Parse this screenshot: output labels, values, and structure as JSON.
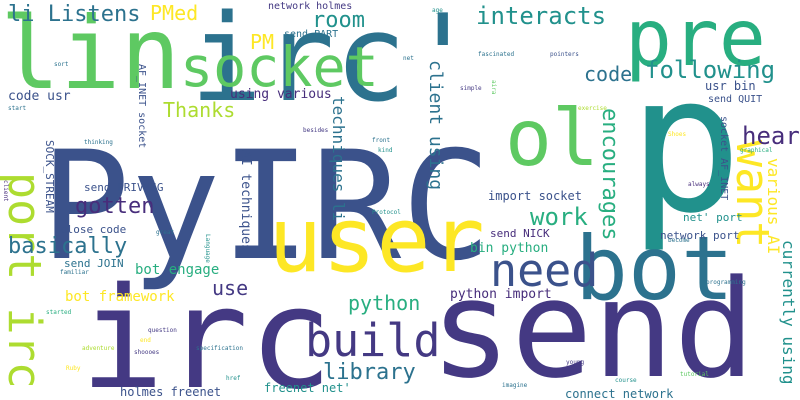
{
  "cloud": {
    "background": "#ffffff",
    "palette": [
      "#3b528b",
      "#443983",
      "#2c728e",
      "#21918c",
      "#28ae80",
      "#5ec962",
      "#addc30",
      "#fde725",
      "#472d7b",
      "#46085c"
    ],
    "words": [
      {
        "text": "PyIRC",
        "color": "#3b528b"
      },
      {
        "text": "p",
        "color": "#21918c"
      },
      {
        "text": "irc",
        "color": "#443983"
      },
      {
        "text": "send",
        "color": "#443983"
      },
      {
        "text": "irc'",
        "color": "#2c728e"
      },
      {
        "text": "user",
        "color": "#fde725"
      },
      {
        "text": "bot",
        "color": "#2c728e"
      },
      {
        "text": "lin",
        "color": "#5ec962"
      },
      {
        "text": "pre",
        "color": "#28ae80"
      },
      {
        "text": "ol",
        "color": "#5ec962"
      },
      {
        "text": "socket",
        "color": "#5ec962"
      },
      {
        "text": "build",
        "color": "#443983"
      },
      {
        "text": "need",
        "color": "#3b528b"
      },
      {
        "text": "port irc",
        "color": "#addc30"
      },
      {
        "text": "want",
        "color": "#fde725"
      },
      {
        "text": "interacts",
        "color": "#21918c"
      },
      {
        "text": "following",
        "color": "#21918c"
      },
      {
        "text": "code",
        "color": "#2c728e"
      },
      {
        "text": "room",
        "color": "#21918c"
      },
      {
        "text": "PMed",
        "color": "#fde725"
      },
      {
        "text": "li Listens",
        "color": "#2c728e"
      },
      {
        "text": "Thanks",
        "color": "#addc30"
      },
      {
        "text": "PM",
        "color": "#fde725"
      },
      {
        "text": "hear",
        "color": "#472d7b"
      },
      {
        "text": "work",
        "color": "#28ae80"
      },
      {
        "text": "encourages",
        "color": "#28ae80"
      },
      {
        "text": "gotten",
        "color": "#472d7b"
      },
      {
        "text": "basically",
        "color": "#2c728e"
      },
      {
        "text": "use",
        "color": "#443983"
      },
      {
        "text": "python",
        "color": "#28ae80"
      },
      {
        "text": "library",
        "color": "#2c728e"
      },
      {
        "text": "client using",
        "color": "#2c728e"
      },
      {
        "text": "techniques li",
        "color": "#2c728e"
      },
      {
        "text": "currently using",
        "color": "#21918c"
      },
      {
        "text": "various AI",
        "color": "#fde725"
      },
      {
        "text": "AI techniques",
        "color": "#3b528b"
      },
      {
        "text": "bot engage",
        "color": "#28ae80"
      },
      {
        "text": "bot framework",
        "color": "#fde725"
      },
      {
        "text": "using various",
        "color": "#472d7b"
      },
      {
        "text": "python import",
        "color": "#472d7b"
      },
      {
        "text": "bin python",
        "color": "#28ae80"
      },
      {
        "text": "code usr",
        "color": "#3b528b"
      },
      {
        "text": "usr bin",
        "color": "#3b528b"
      },
      {
        "text": "freenet net'",
        "color": "#21918c"
      },
      {
        "text": "holmes freenet",
        "color": "#3b528b"
      },
      {
        "text": "connect network",
        "color": "#2c728e"
      },
      {
        "text": "import socket",
        "color": "#3b528b"
      },
      {
        "text": "network holmes",
        "color": "#443983"
      },
      {
        "text": "send PART",
        "color": "#2c728e"
      },
      {
        "text": "AF_INET socket",
        "color": "#3b528b"
      },
      {
        "text": "send QUIT",
        "color": "#3b528b"
      },
      {
        "text": "socket AF_INET",
        "color": "#3b528b"
      },
      {
        "text": "SOCK_STREAM",
        "color": "#3b528b"
      },
      {
        "text": "send PRIVMSG",
        "color": "#3b528b"
      },
      {
        "text": "close code",
        "color": "#3b528b"
      },
      {
        "text": "send NICK",
        "color": "#472d7b"
      },
      {
        "text": "send JOIN",
        "color": "#2c728e"
      },
      {
        "text": "network port",
        "color": "#3b528b"
      },
      {
        "text": "net' port",
        "color": "#21918c"
      },
      {
        "text": "age",
        "color": "#21918c"
      },
      {
        "text": "fascinated",
        "color": "#2c728e"
      },
      {
        "text": "net",
        "color": "#2c728e"
      },
      {
        "text": "sort",
        "color": "#2c728e"
      },
      {
        "text": "pointers",
        "color": "#3b528b"
      },
      {
        "text": "simple",
        "color": "#443983"
      },
      {
        "text": "aira",
        "color": "#5ec962"
      },
      {
        "text": "start",
        "color": "#2c728e"
      },
      {
        "text": "exercise",
        "color": "#addc30"
      },
      {
        "text": "besides",
        "color": "#443983"
      },
      {
        "text": "thinking",
        "color": "#2c728e"
      },
      {
        "text": "front",
        "color": "#2c728e"
      },
      {
        "text": "kind",
        "color": "#21918c"
      },
      {
        "text": "Shoes",
        "color": "#fde725"
      },
      {
        "text": "graphical",
        "color": "#28ae80"
      },
      {
        "text": "client",
        "color": "#472d7b"
      },
      {
        "text": "always",
        "color": "#472d7b"
      },
      {
        "text": "Protocol",
        "color": "#21918c"
      },
      {
        "text": "great",
        "color": "#2c728e"
      },
      {
        "text": "Language",
        "color": "#21918c"
      },
      {
        "text": "become",
        "color": "#2c728e"
      },
      {
        "text": "familiar",
        "color": "#2c728e"
      },
      {
        "text": "programming",
        "color": "#2c728e"
      },
      {
        "text": "started",
        "color": "#28ae80"
      },
      {
        "text": "question",
        "color": "#443983"
      },
      {
        "text": "end",
        "color": "#fde725"
      },
      {
        "text": "specification",
        "color": "#2c728e"
      },
      {
        "text": "adventure",
        "color": "#addc30"
      },
      {
        "text": "shoooes",
        "color": "#443983"
      },
      {
        "text": "Ruby",
        "color": "#fde725"
      },
      {
        "text": "young",
        "color": "#443983"
      },
      {
        "text": "href",
        "color": "#21918c"
      },
      {
        "text": "imagine",
        "color": "#2c728e"
      },
      {
        "text": "course",
        "color": "#21918c"
      },
      {
        "text": "tutorial",
        "color": "#5ec962"
      }
    ]
  }
}
